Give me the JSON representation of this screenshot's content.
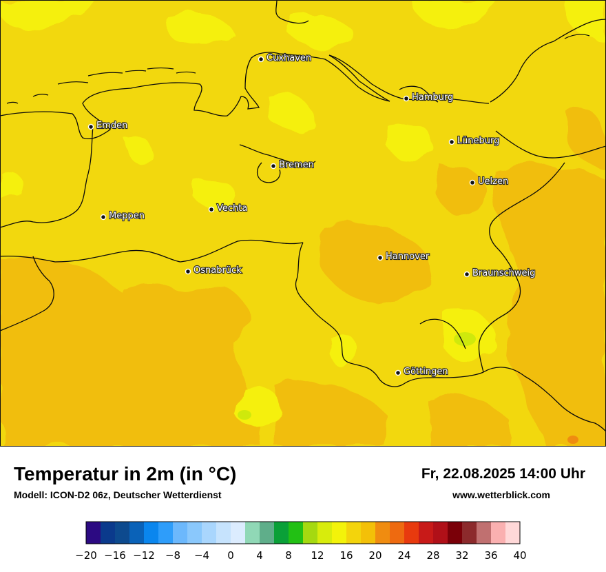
{
  "map": {
    "base_color": "#f2d80e",
    "cities": [
      {
        "name": "Cuxhaven"
      },
      {
        "name": "Hamburg"
      },
      {
        "name": "Emden"
      },
      {
        "name": "Lüneburg"
      },
      {
        "name": "Bremen"
      },
      {
        "name": "Uelzen"
      },
      {
        "name": "Vechta"
      },
      {
        "name": "Meppen"
      },
      {
        "name": "Hannover"
      },
      {
        "name": "Osnabrück"
      },
      {
        "name": "Braunschweig"
      },
      {
        "name": "Göttingen"
      }
    ]
  },
  "footer": {
    "title": "Temperatur in 2m (in °C)",
    "subtitle": "Modell: ICON-D2 06z, Deutscher Wetterdienst",
    "datetime": "Fr, 22.08.2025 14:00 Uhr",
    "website": "www.wetterblick.com"
  },
  "legend": {
    "min": -20,
    "max": 40,
    "step": 2,
    "tick_labels": [
      "−20",
      "−16",
      "−12",
      "−8",
      "−4",
      "0",
      "4",
      "8",
      "12",
      "16",
      "20",
      "24",
      "28",
      "32",
      "36",
      "40"
    ],
    "colors": [
      "#2c0a82",
      "#0b3a8c",
      "#0d4a8e",
      "#0a62b8",
      "#0a86ee",
      "#2e9dfa",
      "#6cb8fc",
      "#8ac8fc",
      "#a9d6fd",
      "#c6e3fd",
      "#dcecfe",
      "#90d8b6",
      "#5fae8a",
      "#0aa038",
      "#22c014",
      "#a5d910",
      "#d8ec0c",
      "#f3f30a",
      "#f3d40c",
      "#f3c008",
      "#f08c10",
      "#ee6a10",
      "#e83a0e",
      "#c81a18",
      "#b01018",
      "#7a0008",
      "#8c2a2c",
      "#c07070",
      "#fab0b0",
      "#ffd8d8"
    ]
  }
}
